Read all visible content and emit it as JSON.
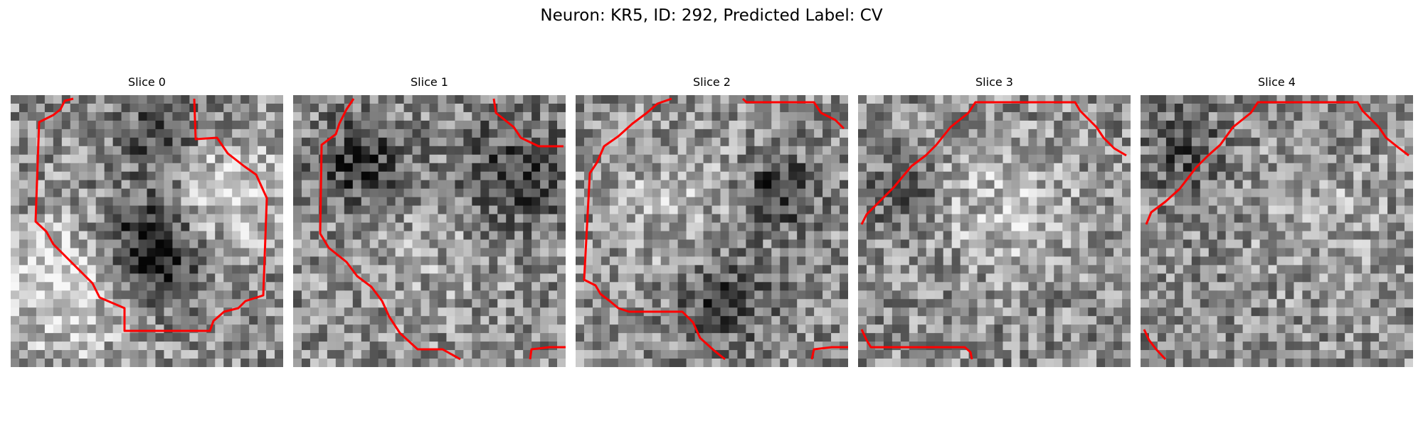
{
  "figure": {
    "title": "Neuron: KR5, ID: 292, Predicted Label: CV"
  },
  "panels": [
    {
      "title": "Slice 0",
      "seed": 11,
      "blobs": [
        [
          0.5,
          0.58,
          0.22,
          -0.55
        ],
        [
          0.22,
          0.7,
          0.3,
          0.35
        ],
        [
          0.8,
          0.35,
          0.25,
          0.3
        ],
        [
          0.55,
          0.15,
          0.2,
          -0.25
        ]
      ]
    },
    {
      "title": "Slice 1",
      "seed": 23,
      "blobs": [
        [
          0.25,
          0.25,
          0.2,
          -0.35
        ],
        [
          0.8,
          0.3,
          0.25,
          -0.3
        ],
        [
          0.5,
          0.55,
          0.35,
          0.1
        ]
      ]
    },
    {
      "title": "Slice 2",
      "seed": 37,
      "blobs": [
        [
          0.75,
          0.35,
          0.15,
          -0.4
        ],
        [
          0.55,
          0.75,
          0.2,
          -0.3
        ],
        [
          0.35,
          0.4,
          0.3,
          0.15
        ]
      ]
    },
    {
      "title": "Slice 3",
      "seed": 41,
      "blobs": [
        [
          0.55,
          0.4,
          0.3,
          0.2
        ],
        [
          0.15,
          0.35,
          0.15,
          -0.2
        ]
      ]
    },
    {
      "title": "Slice 4",
      "seed": 53,
      "blobs": [
        [
          0.65,
          0.45,
          0.3,
          0.12
        ],
        [
          0.15,
          0.2,
          0.18,
          -0.25
        ]
      ]
    }
  ]
}
